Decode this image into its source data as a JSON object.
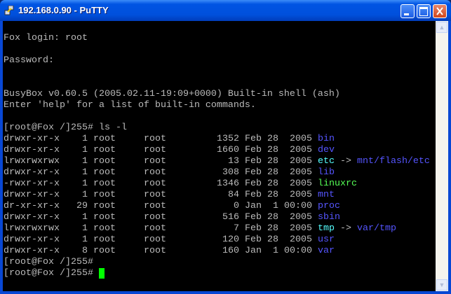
{
  "window": {
    "title": "192.168.0.90 - PuTTY",
    "buttons": [
      "minimize",
      "maximize",
      "close"
    ]
  },
  "colors": {
    "text": "#bbbbbb",
    "directory": "#5555ff",
    "symlink": "#55ffff",
    "executable": "#55ff55",
    "cursor": "#00ff00",
    "background": "#000000"
  },
  "terminal": {
    "pre_lines": [
      "",
      "Fox login: root",
      "",
      "Password:",
      "",
      "",
      "BusyBox v0.60.5 (2005.02.11-19:09+0000) Built-in shell (ash)",
      "Enter 'help' for a list of built-in commands.",
      "",
      "[root@Fox /]255# ls -l"
    ],
    "listing": [
      {
        "perms": "drwxr-xr-x",
        "links": "1",
        "owner": "root",
        "group": "root",
        "size": "1352",
        "date": "Feb 28  2005",
        "name": "bin",
        "type": "directory"
      },
      {
        "perms": "drwxr-xr-x",
        "links": "1",
        "owner": "root",
        "group": "root",
        "size": "1660",
        "date": "Feb 28  2005",
        "name": "dev",
        "type": "directory"
      },
      {
        "perms": "lrwxrwxrwx",
        "links": "1",
        "owner": "root",
        "group": "root",
        "size": "13",
        "date": "Feb 28  2005",
        "name": "etc",
        "type": "symlink",
        "target": "mnt/flash/etc"
      },
      {
        "perms": "drwxr-xr-x",
        "links": "1",
        "owner": "root",
        "group": "root",
        "size": "308",
        "date": "Feb 28  2005",
        "name": "lib",
        "type": "directory"
      },
      {
        "perms": "-rwxr-xr-x",
        "links": "1",
        "owner": "root",
        "group": "root",
        "size": "1346",
        "date": "Feb 28  2005",
        "name": "linuxrc",
        "type": "executable"
      },
      {
        "perms": "drwxr-xr-x",
        "links": "1",
        "owner": "root",
        "group": "root",
        "size": "84",
        "date": "Feb 28  2005",
        "name": "mnt",
        "type": "directory"
      },
      {
        "perms": "dr-xr-xr-x",
        "links": "29",
        "owner": "root",
        "group": "root",
        "size": "0",
        "date": "Jan  1 00:00",
        "name": "proc",
        "type": "directory"
      },
      {
        "perms": "drwxr-xr-x",
        "links": "1",
        "owner": "root",
        "group": "root",
        "size": "516",
        "date": "Feb 28  2005",
        "name": "sbin",
        "type": "directory"
      },
      {
        "perms": "lrwxrwxrwx",
        "links": "1",
        "owner": "root",
        "group": "root",
        "size": "7",
        "date": "Feb 28  2005",
        "name": "tmp",
        "type": "symlink",
        "target": "var/tmp"
      },
      {
        "perms": "drwxr-xr-x",
        "links": "1",
        "owner": "root",
        "group": "root",
        "size": "120",
        "date": "Feb 28  2005",
        "name": "usr",
        "type": "directory"
      },
      {
        "perms": "drwxr-xr-x",
        "links": "8",
        "owner": "root",
        "group": "root",
        "size": "160",
        "date": "Jan  1 00:00",
        "name": "var",
        "type": "directory"
      }
    ],
    "post_lines": [
      "[root@Fox /]255#",
      "[root@Fox /]255# "
    ]
  }
}
